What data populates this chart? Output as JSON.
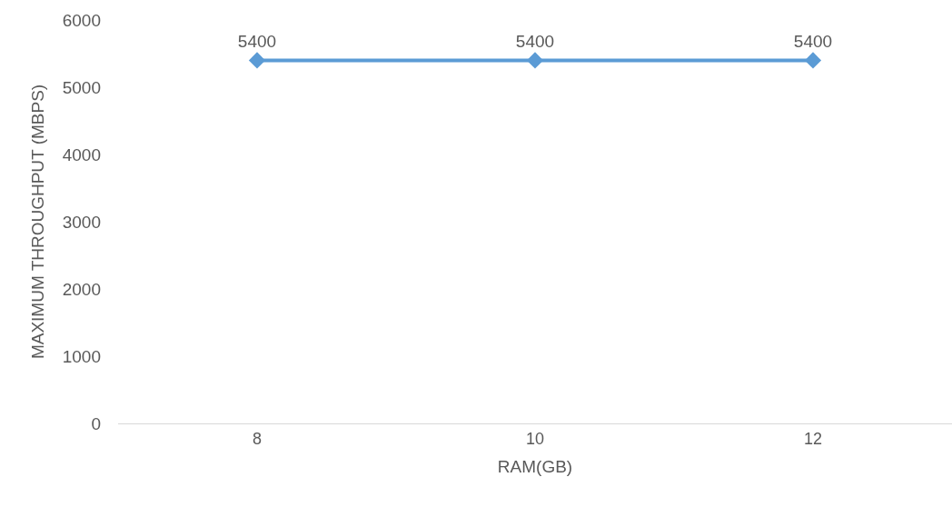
{
  "chart_data": {
    "type": "line",
    "xlabel": "RAM(GB)",
    "ylabel": "MAXIMUM THROUGHPUT (MBPS)",
    "categories": [
      "8",
      "10",
      "12"
    ],
    "series": [
      {
        "color": "#5b9bd5",
        "values": [
          5400,
          5400,
          5400
        ]
      }
    ],
    "ylim": [
      0,
      6000
    ],
    "yticks": [
      0,
      1000,
      2000,
      3000,
      4000,
      5000,
      6000
    ],
    "data_labels": true,
    "marker": "diamond",
    "line_style": "solid",
    "grid": false
  }
}
